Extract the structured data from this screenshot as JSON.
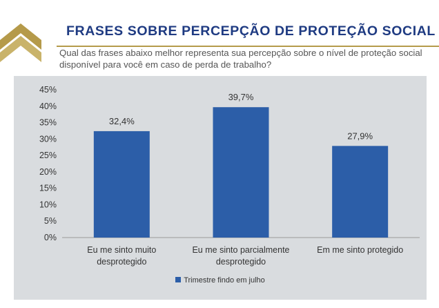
{
  "header": {
    "title": "FRASES SOBRE PERCEPÇÃO DE PROTEÇÃO SOCIAL",
    "question": "Qual das frases abaixo melhor representa sua percepção sobre o nível de proteção social disponível para você em caso de perda de trabalho?"
  },
  "colors": {
    "bar": "#2c5ea8",
    "title": "#1f3b82",
    "accent_gold": "#b59a4a",
    "chart_background": "#d9dcdf"
  },
  "chart_data": {
    "type": "bar",
    "categories": [
      "Eu me sinto muito desprotegido",
      "Eu me sinto parcialmente desprotegido",
      "Em me sinto protegido"
    ],
    "category_lines": [
      [
        "Eu me sinto muito",
        "desprotegido"
      ],
      [
        "Eu me sinto parcialmente",
        "desprotegido"
      ],
      [
        "Em me sinto protegido"
      ]
    ],
    "series": [
      {
        "name": "Trimestre findo em julho",
        "values": [
          32.4,
          39.7,
          27.9
        ]
      }
    ],
    "data_labels": [
      "32,4%",
      "39,7%",
      "27,9%"
    ],
    "y_ticks": [
      "0%",
      "5%",
      "10%",
      "15%",
      "20%",
      "25%",
      "30%",
      "35%",
      "40%",
      "45%"
    ],
    "ylim": [
      0,
      45
    ],
    "xlabel": "",
    "ylabel": "",
    "legend_position": "bottom",
    "grid": false
  }
}
